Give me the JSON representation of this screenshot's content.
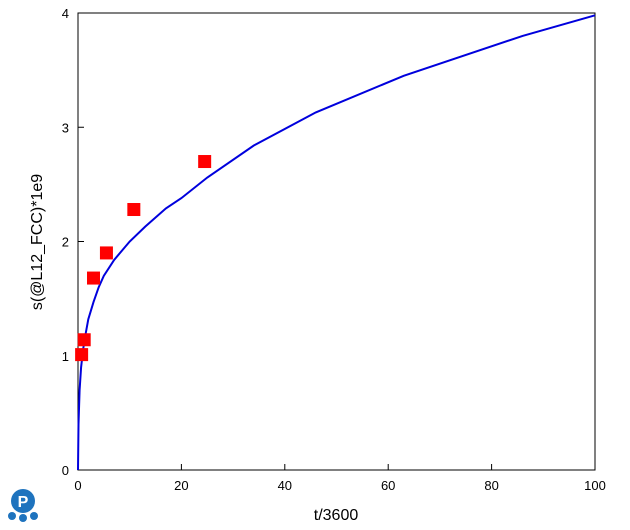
{
  "chart_data": {
    "type": "line",
    "xlabel": "t/3600",
    "ylabel": "s(@L12_FCC)*1e9",
    "xlim": [
      0,
      100
    ],
    "ylim": [
      0,
      4
    ],
    "xticks": [
      0,
      20,
      40,
      60,
      80,
      100
    ],
    "yticks": [
      0,
      1,
      2,
      3,
      4
    ],
    "grid": false,
    "series": [
      {
        "type": "line",
        "color": "#0000dd",
        "x": [
          0,
          0.1,
          0.3,
          0.6,
          1,
          1.5,
          2,
          3,
          4,
          5,
          7,
          10,
          13,
          17,
          20,
          25,
          34,
          46,
          63,
          86,
          100
        ],
        "y": [
          0,
          0.4,
          0.7,
          0.9,
          1.06,
          1.2,
          1.32,
          1.47,
          1.6,
          1.7,
          1.84,
          2.0,
          2.13,
          2.29,
          2.38,
          2.56,
          2.84,
          3.13,
          3.45,
          3.8,
          3.98
        ]
      },
      {
        "type": "scatter",
        "marker": "square",
        "color": "#ff0000",
        "x": [
          0.7,
          1.2,
          3,
          5.5,
          10.8,
          24.5
        ],
        "y": [
          1.01,
          1.14,
          1.68,
          1.9,
          2.28,
          2.7
        ]
      }
    ]
  },
  "logo": {
    "icon": "p-logo-icon",
    "color": "#1e73be"
  }
}
